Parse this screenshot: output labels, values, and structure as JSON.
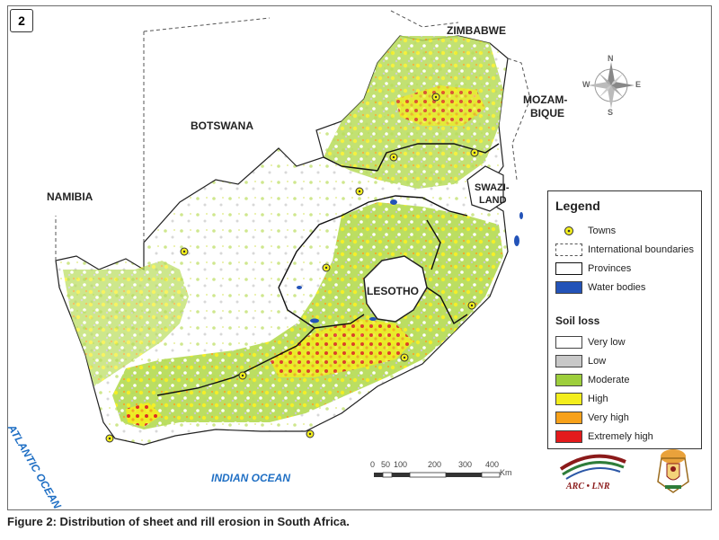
{
  "figure_number": "2",
  "caption": "Figure 2: Distribution of sheet and rill erosion in South Africa.",
  "country_labels": {
    "zimbabwe": "ZIMBABWE",
    "botswana": "BOTSWANA",
    "namibia": "NAMIBIA",
    "mozambique_line1": "MOZAM-",
    "mozambique_line2": "BIQUE",
    "swaziland_line1": "SWAZI-",
    "swaziland_line2": "LAND",
    "lesotho": "LESOTHO"
  },
  "ocean_labels": {
    "atlantic": "ATLANTIC OCEAN",
    "indian": "INDIAN OCEAN"
  },
  "compass": {
    "n": "N",
    "s": "S",
    "e": "E",
    "w": "W"
  },
  "legend": {
    "title": "Legend",
    "items": [
      {
        "label": "Towns",
        "kind": "town"
      },
      {
        "label": "International boundaries",
        "kind": "international"
      },
      {
        "label": "Provinces",
        "kind": "province"
      },
      {
        "label": "Water bodies",
        "kind": "water",
        "color": "#2353b8"
      }
    ],
    "soil_title": "Soil loss",
    "soil_classes": [
      {
        "label": "Very low",
        "color": "#ffffff"
      },
      {
        "label": "Low",
        "color": "#c8c8c8"
      },
      {
        "label": "Moderate",
        "color": "#9dce3c"
      },
      {
        "label": "High",
        "color": "#f3ee1d"
      },
      {
        "label": "Very high",
        "color": "#f7a11a"
      },
      {
        "label": "Extremely high",
        "color": "#e31a1c"
      }
    ]
  },
  "scale_bar": {
    "ticks": [
      "0",
      "50",
      "100",
      "200",
      "300",
      "400"
    ],
    "unit": "Km"
  },
  "logos": {
    "arc": "ARC • LNR"
  }
}
